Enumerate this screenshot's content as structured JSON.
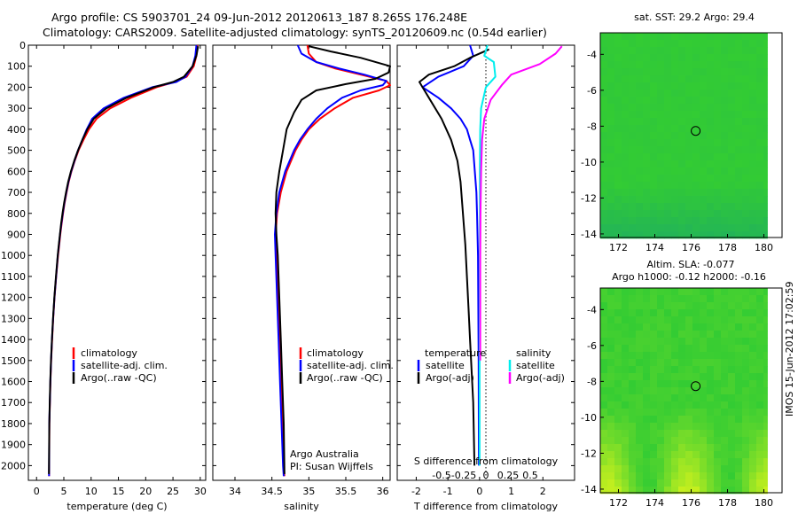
{
  "figure": {
    "title_line1": "Argo profile: CS 5903701_24 09-Jun-2012 20120613_187 8.265S 176.248E",
    "title_line2": "Climatology: CARS2009. Satellite-adjusted climatology: synTS_20120609.nc (0.54d earlier)",
    "side_stamp": "IMOS 15-Jun-2012 17:02:59",
    "credit_line1": "Argo Australia",
    "credit_line2": "PI: Susan Wijffels"
  },
  "colors": {
    "climatology": "#ff0000",
    "satellite": "#0000ff",
    "argo": "#000000",
    "satellite_salinity": "#00eeee",
    "argo_salinity_diff": "#ff00ff",
    "map_sea": "#33cc33",
    "map_deep": "#1aa86a",
    "map_warm": "#c8f01e",
    "map_land": "#ffffff"
  },
  "chart_data": [
    {
      "type": "line",
      "panel": "temperature",
      "xlabel": "temperature (deg C)",
      "ylabel": "",
      "xlim": [
        -1.5,
        31
      ],
      "ylim": [
        2070,
        0
      ],
      "xticks": [
        0,
        5,
        10,
        15,
        20,
        25,
        30
      ],
      "xtick_labels": [
        "0",
        "5",
        "10",
        "15",
        "20",
        "25",
        "30"
      ],
      "yticks": [
        0,
        100,
        200,
        300,
        400,
        500,
        600,
        700,
        800,
        900,
        1000,
        1100,
        1200,
        1300,
        1400,
        1500,
        1600,
        1700,
        1800,
        1900,
        2000
      ],
      "ytick_labels": [
        "0",
        "100",
        "200",
        "300",
        "400",
        "500",
        "600",
        "700",
        "800",
        "900",
        "1000",
        "1100",
        "1200",
        "1300",
        "1400",
        "1500",
        "1600",
        "1700",
        "1800",
        "1900",
        "2000"
      ],
      "legend": [
        "climatology",
        "satellite-adj. clim.",
        "Argo(..raw -QC)"
      ],
      "series": [
        {
          "name": "climatology",
          "color_key": "climatology",
          "x": [
            29.5,
            29.3,
            28.8,
            27.5,
            25.3,
            22.0,
            17.3,
            13.5,
            11.0,
            9.6,
            8.6,
            7.7,
            7.0,
            6.4,
            5.9,
            5.5,
            5.15,
            4.85,
            4.6,
            4.35,
            4.15,
            3.95,
            3.6,
            3.3,
            3.05,
            2.85,
            2.68,
            2.55,
            2.45,
            2.35,
            2.3
          ],
          "y": [
            0,
            50,
            100,
            150,
            175,
            200,
            250,
            300,
            350,
            400,
            450,
            500,
            550,
            600,
            650,
            700,
            750,
            800,
            850,
            900,
            950,
            1000,
            1100,
            1200,
            1300,
            1400,
            1500,
            1600,
            1700,
            1800,
            2050
          ]
        },
        {
          "name": "satellite-adj. clim.",
          "color_key": "satellite",
          "x": [
            29.3,
            29.1,
            28.6,
            27.3,
            25.6,
            21.2,
            16.0,
            12.3,
            10.2,
            9.2,
            8.4,
            7.6,
            6.95,
            6.35,
            5.85,
            5.45,
            5.1,
            4.8,
            4.55,
            4.3,
            4.1,
            3.9,
            3.58,
            3.28,
            3.03,
            2.83,
            2.66,
            2.53,
            2.43,
            2.34,
            2.28
          ],
          "y": [
            0,
            50,
            100,
            150,
            175,
            200,
            250,
            300,
            350,
            400,
            450,
            500,
            550,
            600,
            650,
            700,
            750,
            800,
            850,
            900,
            950,
            1000,
            1100,
            1200,
            1300,
            1400,
            1500,
            1600,
            1700,
            1800,
            2050
          ]
        },
        {
          "name": "Argo(..raw -QC)",
          "color_key": "argo",
          "x": [
            29.6,
            29.3,
            28.6,
            27.0,
            25.0,
            21.5,
            16.5,
            12.8,
            10.5,
            9.3,
            8.4,
            7.6,
            6.9,
            6.3,
            5.8,
            5.4,
            5.05,
            4.75,
            4.5,
            4.28,
            4.08,
            3.88,
            3.56,
            3.26,
            3.01,
            2.82,
            2.65,
            2.52,
            2.42,
            2.33,
            2.27
          ],
          "y": [
            5,
            50,
            100,
            150,
            175,
            200,
            250,
            300,
            350,
            400,
            450,
            500,
            550,
            600,
            650,
            700,
            750,
            800,
            850,
            900,
            950,
            1000,
            1100,
            1200,
            1300,
            1400,
            1500,
            1600,
            1700,
            1800,
            2040
          ]
        }
      ]
    },
    {
      "type": "line",
      "panel": "salinity",
      "xlabel": "salinity",
      "ylabel": "",
      "xlim": [
        33.7,
        36.1
      ],
      "ylim": [
        2070,
        0
      ],
      "xticks": [
        34,
        34.5,
        35,
        35.5,
        36
      ],
      "xtick_labels": [
        "34",
        "34.5",
        "35",
        "35.5",
        "36"
      ],
      "legend": [
        "climatology",
        "satellite-adj. clim.",
        "Argo(..raw -QC)"
      ],
      "series": [
        {
          "name": "climatology",
          "color_key": "climatology",
          "x": [
            34.98,
            35.0,
            35.1,
            35.35,
            35.7,
            36.05,
            36.1,
            35.95,
            35.6,
            35.35,
            35.15,
            35.0,
            34.9,
            34.82,
            34.7,
            34.62,
            34.57,
            34.55,
            34.56,
            34.58,
            34.6,
            34.62,
            34.64,
            34.66,
            34.67
          ],
          "y": [
            0,
            40,
            80,
            110,
            140,
            170,
            190,
            215,
            250,
            300,
            350,
            400,
            450,
            500,
            600,
            700,
            800,
            900,
            1000,
            1200,
            1400,
            1600,
            1800,
            2000,
            2050
          ]
        },
        {
          "name": "satellite-adj. clim.",
          "color_key": "satellite",
          "x": [
            34.85,
            34.9,
            35.1,
            35.4,
            35.75,
            36.05,
            36.0,
            35.7,
            35.45,
            35.25,
            35.1,
            34.98,
            34.88,
            34.8,
            34.68,
            34.6,
            34.56,
            34.54,
            34.55,
            34.57,
            34.59,
            34.61,
            34.63,
            34.65,
            34.66
          ],
          "y": [
            0,
            40,
            80,
            110,
            140,
            170,
            190,
            215,
            250,
            300,
            350,
            400,
            450,
            500,
            600,
            700,
            800,
            900,
            1000,
            1200,
            1400,
            1600,
            1800,
            2000,
            2050
          ]
        },
        {
          "name": "Argo(..raw -QC)",
          "color_key": "argo",
          "x": [
            35.0,
            35.3,
            35.7,
            36.1,
            36.08,
            35.9,
            35.5,
            35.1,
            34.9,
            34.8,
            34.7,
            34.65,
            34.6,
            34.56,
            34.55,
            34.56,
            34.58,
            34.6,
            34.62,
            34.64,
            34.66,
            34.67
          ],
          "y": [
            5,
            30,
            60,
            100,
            130,
            160,
            185,
            215,
            260,
            320,
            400,
            500,
            600,
            700,
            800,
            900,
            1000,
            1200,
            1400,
            1600,
            1800,
            2040
          ]
        }
      ]
    },
    {
      "type": "line",
      "panel": "difference",
      "xlabel": "T difference from climatology",
      "top_label": "S difference from climatology",
      "xlim": [
        -2.6,
        3.0
      ],
      "ylim": [
        2070,
        0
      ],
      "xticks": [
        -2,
        -1,
        0,
        1,
        2
      ],
      "xtick_labels": [
        "-2",
        "-1",
        "0",
        "1",
        "2"
      ],
      "s_ticks": [
        -0.5,
        -0.25,
        0,
        0.25,
        0.5
      ],
      "s_tick_labels": [
        "-0.5",
        "-0.25",
        "0",
        "0.25",
        "0.5"
      ],
      "legend": {
        "temperature_heading": "temperature",
        "salinity_heading": "salinity",
        "temperature_items": [
          "satellite",
          "Argo(-adj)"
        ],
        "salinity_items": [
          "satellite",
          "Argo(-adj)"
        ]
      },
      "series": [
        {
          "name": "satellite",
          "color_key": "satellite",
          "x": [
            -0.3,
            -0.2,
            -0.5,
            -1.3,
            -1.8,
            -1.3,
            -0.9,
            -0.6,
            -0.4,
            -0.3,
            -0.2,
            -0.15,
            -0.1,
            -0.08,
            -0.05,
            -0.03,
            -0.02
          ],
          "y": [
            0,
            50,
            100,
            150,
            200,
            250,
            300,
            350,
            400,
            450,
            500,
            600,
            700,
            800,
            1000,
            1500,
            2000
          ]
        },
        {
          "name": "Argo(-adj)",
          "color_key": "argo",
          "x": [
            0.3,
            -0.3,
            -0.8,
            -1.6,
            -1.9,
            -1.6,
            -1.2,
            -0.9,
            -0.7,
            -0.6,
            -0.55,
            -0.5,
            -0.45,
            -0.4,
            -0.35,
            -0.3,
            -0.25,
            -0.2,
            -0.18,
            -0.16
          ],
          "y": [
            20,
            60,
            100,
            140,
            175,
            250,
            350,
            450,
            550,
            650,
            750,
            850,
            950,
            1100,
            1250,
            1400,
            1550,
            1700,
            1850,
            2000
          ]
        },
        {
          "name": "satellite",
          "color_key": "satellite_salinity",
          "x": [
            0.25,
            0.15,
            0.45,
            0.5,
            0.2,
            0.05,
            0.02,
            0.01,
            0.01,
            0.0,
            0.0
          ],
          "y": [
            0,
            50,
            80,
            150,
            200,
            300,
            400,
            600,
            1000,
            1500,
            2000
          ]
        },
        {
          "name": "Argo(-adj)",
          "color_key": "argo_salinity_diff",
          "x": [
            2.6,
            2.4,
            1.9,
            1.0,
            0.7,
            0.35,
            0.15,
            0.08,
            0.05,
            0.03,
            0.02,
            0.02
          ],
          "y": [
            5,
            40,
            90,
            140,
            190,
            260,
            350,
            450,
            600,
            800,
            1000,
            1500
          ]
        }
      ]
    },
    {
      "type": "heatmap",
      "panel": "sst_map",
      "title": "sat. SST: 29.2  Argo: 29.4",
      "xlim": [
        171,
        181
      ],
      "ylim": [
        -14.2,
        -2.8
      ],
      "xticks": [
        172,
        174,
        176,
        178,
        180
      ],
      "xtick_labels": [
        "172",
        "174",
        "176",
        "178",
        "180"
      ],
      "yticks": [
        -4,
        -6,
        -8,
        -10,
        -12,
        -14
      ],
      "ytick_labels": [
        "-4",
        "-6",
        "-8",
        "-10",
        "-12",
        "-14"
      ],
      "argo_position": {
        "lon": 176.248,
        "lat": -8.265
      }
    },
    {
      "type": "heatmap",
      "panel": "sla_map",
      "title_line1": "Altim. SLA: -0.077",
      "title_line2": "Argo h1000: -0.12 h2000: -0.16",
      "xlim": [
        171,
        181
      ],
      "ylim": [
        -14.2,
        -2.8
      ],
      "xticks": [
        172,
        174,
        176,
        178,
        180
      ],
      "xtick_labels": [
        "172",
        "174",
        "176",
        "178",
        "180"
      ],
      "yticks": [
        -4,
        -6,
        -8,
        -10,
        -12,
        -14
      ],
      "ytick_labels": [
        "-4",
        "-6",
        "-8",
        "-10",
        "-12",
        "-14"
      ],
      "argo_position": {
        "lon": 176.248,
        "lat": -8.265
      }
    }
  ]
}
